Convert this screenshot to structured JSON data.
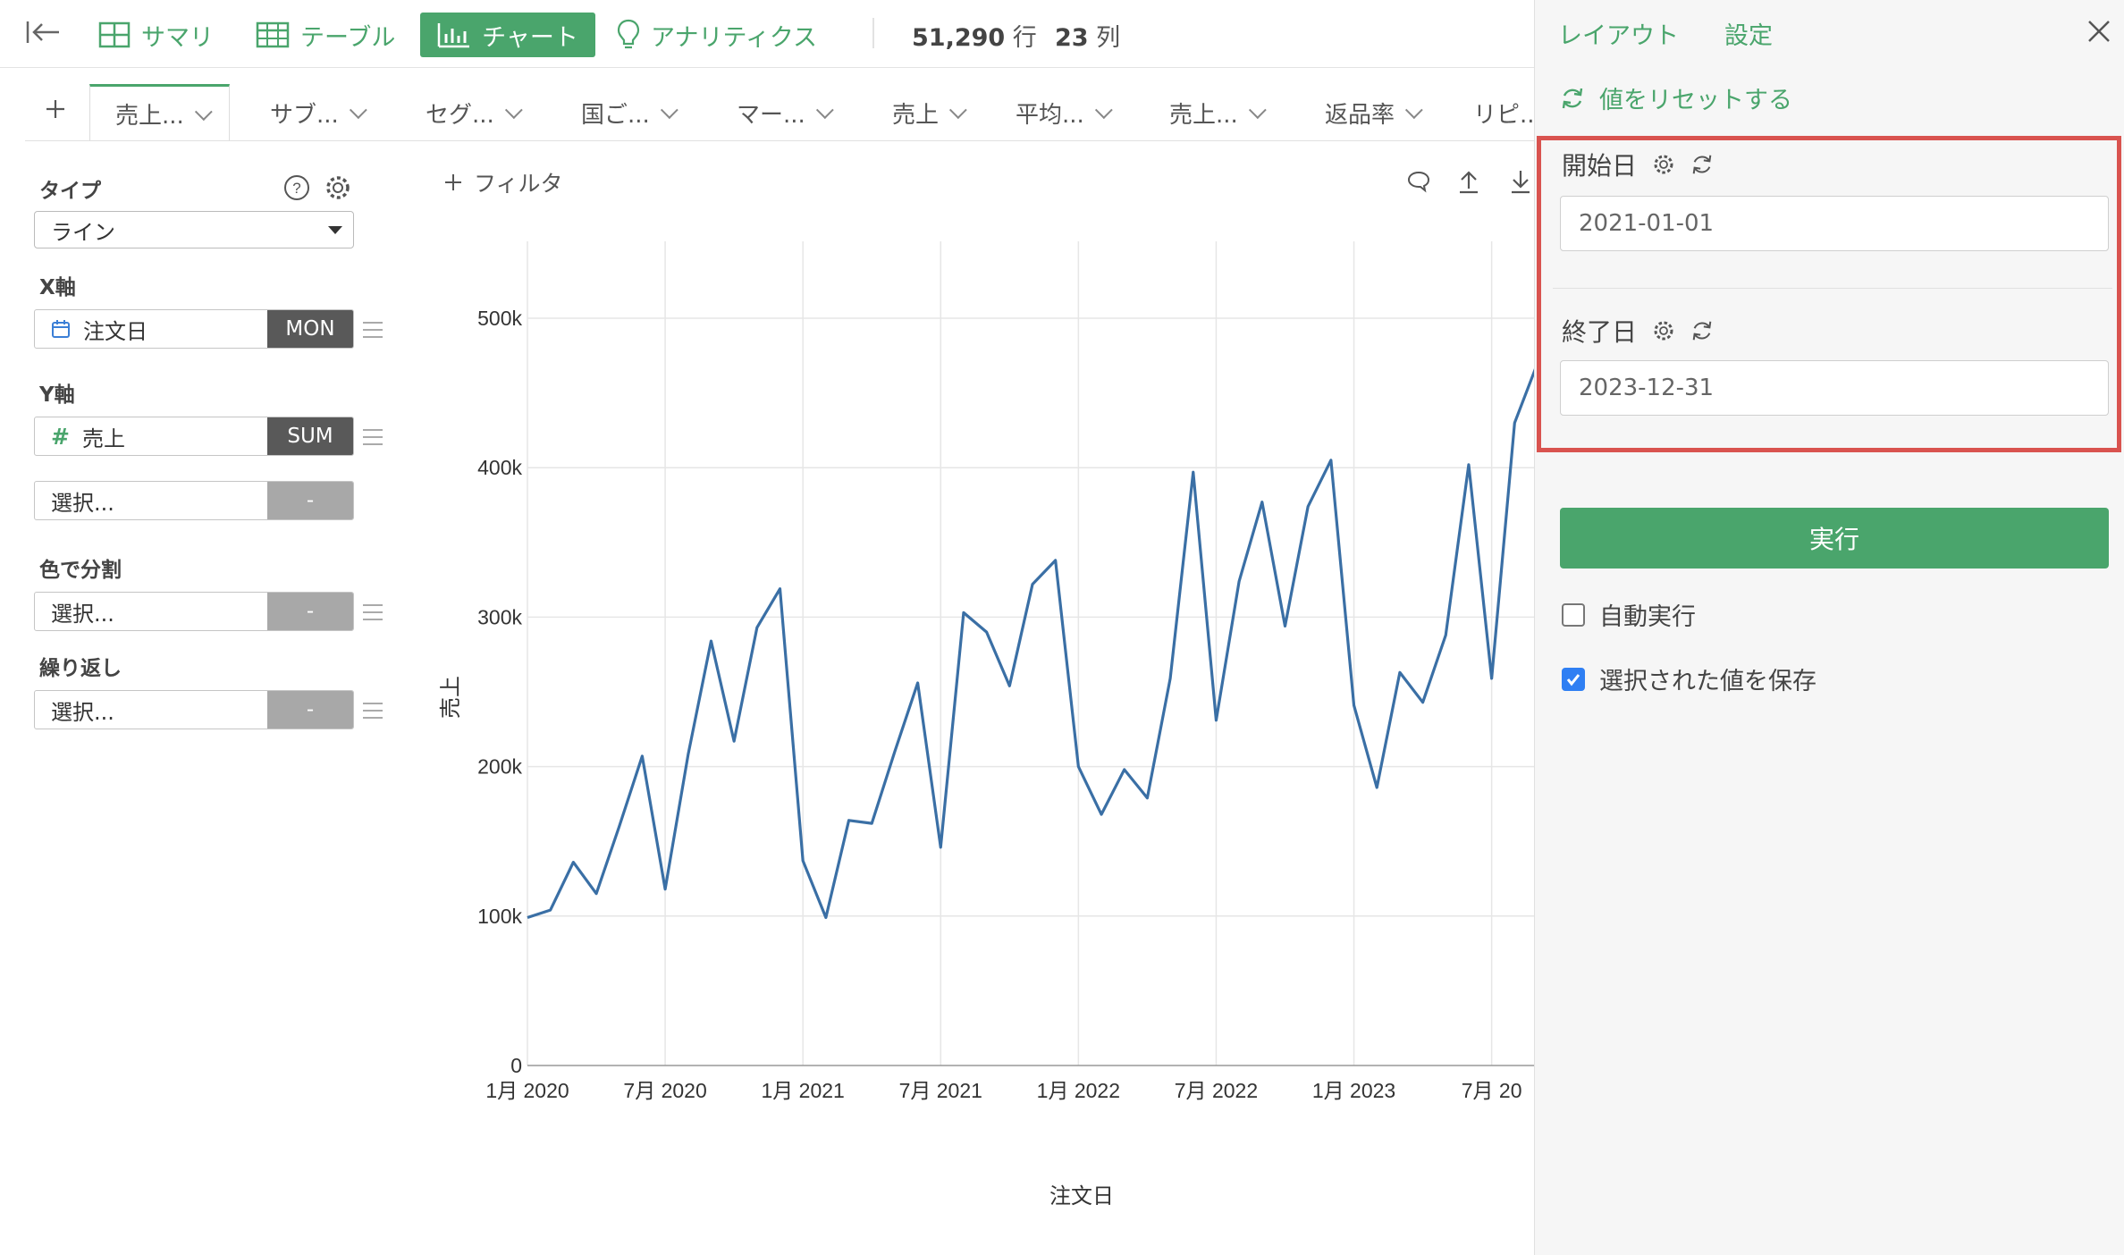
{
  "toolbar": {
    "summary": "サマリ",
    "table": "テーブル",
    "chart": "チャート",
    "analytics": "アナリティクス",
    "rows_value": "51,290",
    "rows_unit": "行",
    "cols_value": "23",
    "cols_unit": "列"
  },
  "tabs": [
    "売上...",
    "サブ...",
    "セグ...",
    "国ご...",
    "マー...",
    "売上",
    "平均...",
    "売上...",
    "返品率",
    "リピ..."
  ],
  "left_panel": {
    "type_label": "タイプ",
    "type_value": "ライン",
    "x_label": "X軸",
    "x_field": "注文日",
    "x_agg": "MON",
    "y_label": "Y軸",
    "y_field": "売上",
    "y_agg": "SUM",
    "y2_placeholder": "選択...",
    "y2_agg": "-",
    "color_label": "色で分割",
    "color_placeholder": "選択...",
    "color_agg": "-",
    "repeat_label": "繰り返し",
    "repeat_placeholder": "選択...",
    "repeat_agg": "-"
  },
  "chart_area": {
    "filter_label": "フィルタ"
  },
  "chart_data": {
    "type": "line",
    "xlabel": "注文日",
    "ylabel": "売上",
    "ylim": [
      0,
      500000
    ],
    "yticks": [
      0,
      100000,
      200000,
      300000,
      400000,
      500000
    ],
    "ytick_labels": [
      "0",
      "100k",
      "200k",
      "300k",
      "400k",
      "500k"
    ],
    "xtick_labels": [
      "1月 2020",
      "7月 2020",
      "1月 2021",
      "7月 2021",
      "1月 2022",
      "7月 2022",
      "1月 2023",
      "7月 20"
    ],
    "grid": true,
    "color": "#3a6fa5",
    "x": [
      "2020-01",
      "2020-02",
      "2020-03",
      "2020-04",
      "2020-05",
      "2020-06",
      "2020-07",
      "2020-08",
      "2020-09",
      "2020-10",
      "2020-11",
      "2020-12",
      "2021-01",
      "2021-02",
      "2021-03",
      "2021-04",
      "2021-05",
      "2021-06",
      "2021-07",
      "2021-08",
      "2021-09",
      "2021-10",
      "2021-11",
      "2021-12",
      "2022-01",
      "2022-02",
      "2022-03",
      "2022-04",
      "2022-05",
      "2022-06",
      "2022-07",
      "2022-08",
      "2022-09",
      "2022-10",
      "2022-11",
      "2022-12",
      "2023-01",
      "2023-02",
      "2023-03",
      "2023-04",
      "2023-05",
      "2023-06",
      "2023-07",
      "2023-08",
      "2023-09"
    ],
    "values": [
      99000,
      104000,
      136000,
      115000,
      160000,
      207000,
      118000,
      208000,
      284000,
      217000,
      293000,
      319000,
      137000,
      99000,
      164000,
      162000,
      210000,
      256000,
      146000,
      303000,
      290000,
      254000,
      322000,
      338000,
      200000,
      168000,
      198000,
      179000,
      259000,
      397000,
      231000,
      324000,
      377000,
      294000,
      374000,
      405000,
      241000,
      186000,
      263000,
      243000,
      288000,
      402000,
      259000,
      430000,
      470000
    ]
  },
  "right_panel": {
    "layout_link": "レイアウト",
    "settings_link": "設定",
    "reset_label": "値をリセットする",
    "start_label": "開始日",
    "start_value": "2021-01-01",
    "end_label": "終了日",
    "end_value": "2023-12-31",
    "run_label": "実行",
    "auto_run_label": "自動実行",
    "auto_run_checked": false,
    "save_values_label": "選択された値を保存",
    "save_values_checked": true,
    "accent_color": "#4aa56c",
    "highlight_color": "#d9534f"
  }
}
